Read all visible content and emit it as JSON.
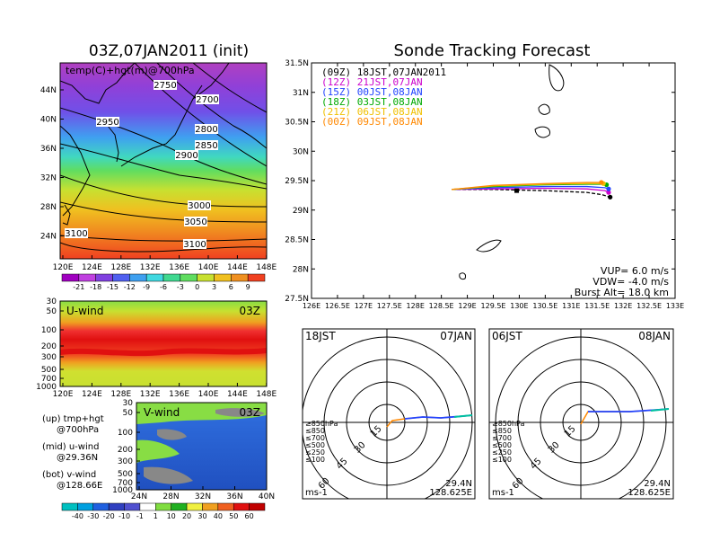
{
  "left": {
    "title": "03Z,07JAN2011 (init)",
    "map": {
      "label": "temp(C)+hgt(m)@700hPa",
      "lat_ticks": [
        "44N",
        "40N",
        "36N",
        "32N",
        "28N",
        "24N"
      ],
      "lon_ticks": [
        "120E",
        "124E",
        "128E",
        "132E",
        "136E",
        "140E",
        "144E",
        "148E"
      ],
      "contour_labels": [
        "2750",
        "2700",
        "2950",
        "2800",
        "2850",
        "2900",
        "3000",
        "3050",
        "3100",
        "3100"
      ]
    },
    "temp_colorbar": [
      "-21",
      "-18",
      "-15",
      "-12",
      "-9",
      "-6",
      "-3",
      "0",
      "3",
      "6",
      "9"
    ],
    "uwind": {
      "label": "U-wind",
      "time": "03Z",
      "p_ticks": [
        "30",
        "50",
        "100",
        "200",
        "300",
        "500",
        "700",
        "1000"
      ],
      "lon_ticks": [
        "120E",
        "124E",
        "128E",
        "132E",
        "136E",
        "140E",
        "144E",
        "148E"
      ]
    },
    "vwind": {
      "label": "V-wind",
      "time": "03Z",
      "p_ticks": [
        "30",
        "50",
        "100",
        "200",
        "300",
        "500",
        "700",
        "1000"
      ],
      "lat_ticks": [
        "24N",
        "28N",
        "32N",
        "36N",
        "40N"
      ]
    },
    "legend": {
      "up": "(up) tmp+hgt",
      "up2": "@700hPa",
      "mid": "(mid) u-wind",
      "mid2": "@29.36N",
      "bot": "(bot) v-wind",
      "bot2": "@128.66E"
    },
    "wind_colorbar": [
      "-40",
      "-30",
      "-20",
      "-10",
      "-1",
      "1",
      "10",
      "20",
      "30",
      "40",
      "50",
      "60"
    ]
  },
  "right": {
    "title": "Sonde Tracking Forecast",
    "lat_ticks": [
      "31.5N",
      "31N",
      "30.5N",
      "30N",
      "29.5N",
      "29N",
      "28.5N",
      "28N",
      "27.5N"
    ],
    "lon_ticks": [
      "126E",
      "126.5E",
      "127E",
      "127.5E",
      "128E",
      "128.5E",
      "129E",
      "129.5E",
      "130E",
      "130.5E",
      "131E",
      "131.5E",
      "132E",
      "132.5E",
      "133E"
    ],
    "legend": [
      {
        "text": "(09Z)  18JST,07JAN2011",
        "color": "#000000"
      },
      {
        "text": "(12Z)  21JST,07JAN",
        "color": "#cc00cc"
      },
      {
        "text": "(15Z)  00JST,08JAN",
        "color": "#2244ff"
      },
      {
        "text": "(18Z)  03JST,08JAN",
        "color": "#00aa00"
      },
      {
        "text": "(21Z)  06JST,08JAN",
        "color": "#f0c000"
      },
      {
        "text": "(00Z)  09JST,08JAN",
        "color": "#ff8800"
      }
    ],
    "params": [
      "VUP=  6.0  m/s",
      "VDW= -4.0  m/s",
      "Burst Alt=  18.0  km"
    ]
  },
  "polar": [
    {
      "time": "18JST",
      "date": "07JAN",
      "rings": [
        "15",
        "30",
        "45",
        "60"
      ],
      "units": "ms-1",
      "lat": "29.4N",
      "lon": "128.625E"
    },
    {
      "time": "06JST",
      "date": "08JAN",
      "rings": [
        "15",
        "30",
        "45",
        "60"
      ],
      "units": "ms-1",
      "lat": "29.4N",
      "lon": "128.625E"
    }
  ],
  "polar_legend": [
    {
      "text": "≥850hPa",
      "color": "#ff2200"
    },
    {
      "text": "≤850",
      "color": "#ff9900"
    },
    {
      "text": "≤700",
      "color": "#e8c000"
    },
    {
      "text": "≤500",
      "color": "#00bb00"
    },
    {
      "text": "≤250",
      "color": "#00bbdd"
    },
    {
      "text": "≤100",
      "color": "#2244ff"
    }
  ],
  "chart_data": [
    {
      "type": "line",
      "title": "Sonde Tracking Forecast",
      "xlim": [
        126,
        133
      ],
      "ylim": [
        27.5,
        31.5
      ],
      "series": [
        {
          "name": "(09Z)  18JST,07JAN2011",
          "x": [
            128.7,
            129.5,
            130.5,
            131.3,
            131.6,
            131.75
          ],
          "y": [
            29.35,
            29.35,
            29.33,
            29.3,
            29.26,
            29.22
          ]
        },
        {
          "name": "(12Z)  21JST,07JAN",
          "x": [
            128.7,
            129.5,
            130.5,
            131.3,
            131.65,
            131.72
          ],
          "y": [
            29.35,
            29.36,
            29.37,
            29.36,
            29.33,
            29.3
          ]
        },
        {
          "name": "(15Z)  00JST,08JAN",
          "x": [
            128.7,
            129.5,
            130.5,
            131.3,
            131.65,
            131.72
          ],
          "y": [
            29.35,
            29.38,
            29.4,
            29.4,
            29.38,
            29.36
          ]
        },
        {
          "name": "(18Z)  03JST,08JAN",
          "x": [
            128.7,
            129.5,
            130.5,
            131.3,
            131.6,
            131.68
          ],
          "y": [
            29.35,
            29.4,
            29.43,
            29.44,
            29.44,
            29.43
          ]
        },
        {
          "name": "(21Z)  06JST,08JAN",
          "x": [
            128.7,
            129.5,
            130.5,
            131.3,
            131.55,
            131.62
          ],
          "y": [
            29.35,
            29.41,
            29.44,
            29.45,
            29.45,
            29.45
          ]
        },
        {
          "name": "(00Z)  09JST,08JAN",
          "x": [
            128.7,
            129.5,
            130.5,
            131.3,
            131.5,
            131.58
          ],
          "y": [
            29.35,
            29.42,
            29.45,
            29.47,
            29.47,
            29.47
          ]
        }
      ]
    }
  ]
}
